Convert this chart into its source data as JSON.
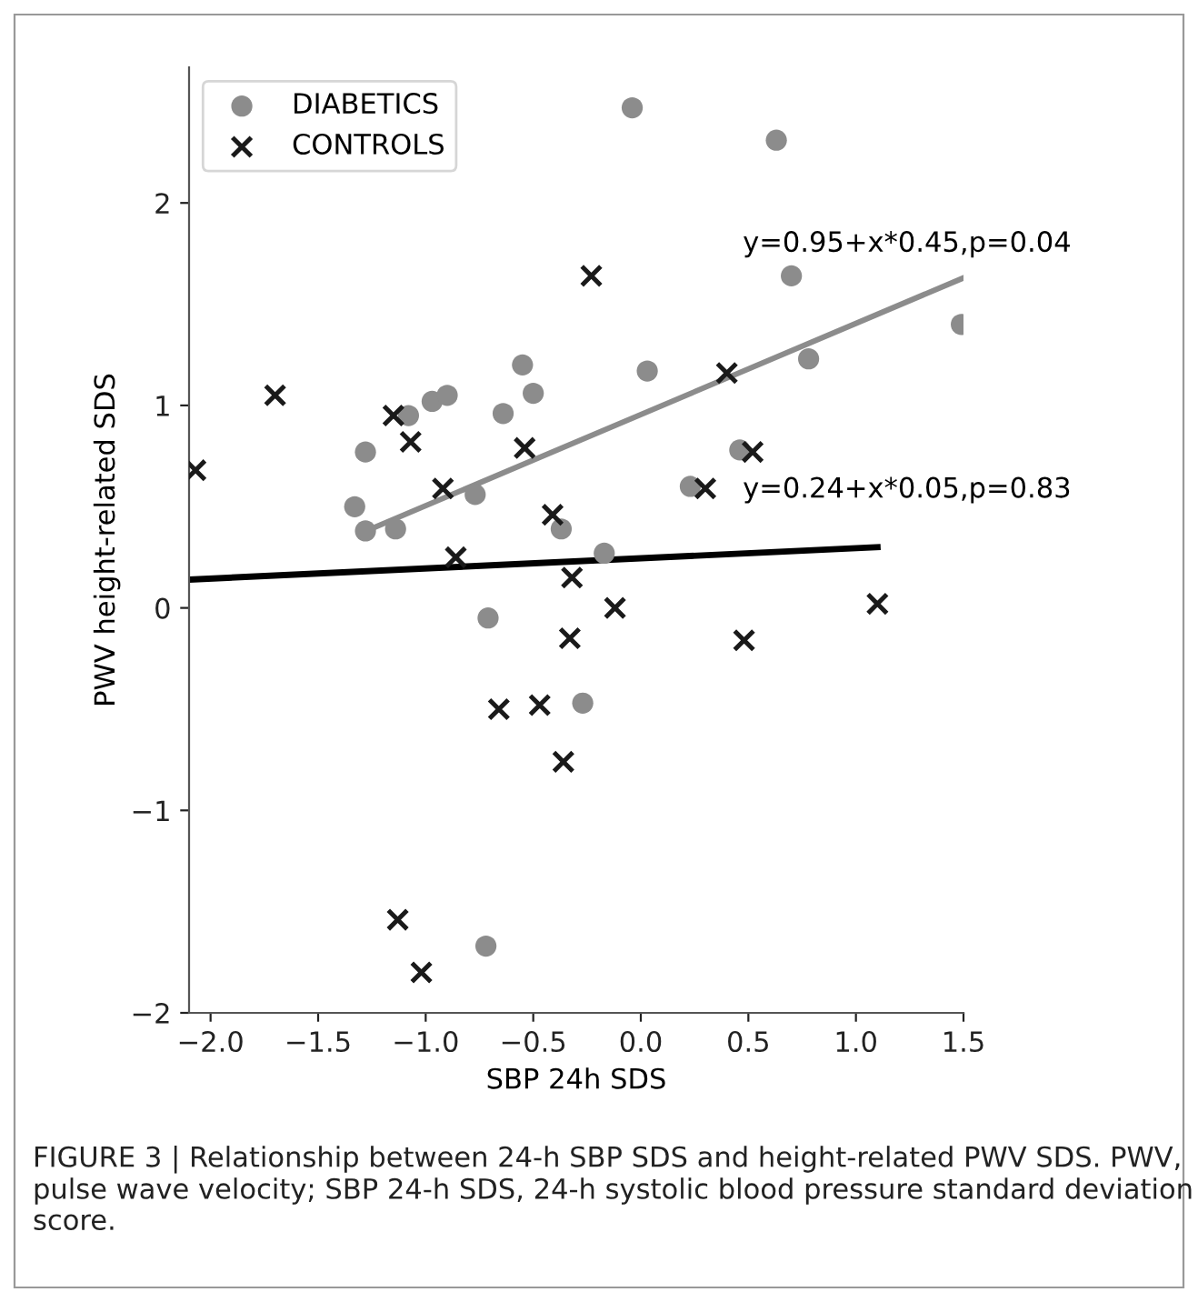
{
  "chart_data": {
    "type": "scatter",
    "xlabel": "SBP 24h SDS",
    "ylabel": "PWV height-related SDS",
    "xlim": [
      -2.1,
      1.5
    ],
    "ylim": [
      -2.0,
      2.67
    ],
    "xticks": [
      {
        "value": -2.0,
        "label": "−2.0"
      },
      {
        "value": -1.5,
        "label": "−1.5"
      },
      {
        "value": -1.0,
        "label": "−1.0"
      },
      {
        "value": -0.5,
        "label": "−0.5"
      },
      {
        "value": 0.0,
        "label": "0.0"
      },
      {
        "value": 0.5,
        "label": "0.5"
      },
      {
        "value": 1.0,
        "label": "1.0"
      },
      {
        "value": 1.5,
        "label": "1.5"
      }
    ],
    "yticks": [
      {
        "value": -2,
        "label": "−2"
      },
      {
        "value": -1,
        "label": "−1"
      },
      0,
      1,
      2
    ],
    "grid": false,
    "legend": "top left",
    "series": [
      {
        "name": "DIABETICS",
        "marker": "circle",
        "color": "#8c8c8c",
        "x": [
          -0.04,
          0.63,
          0.7,
          1.49,
          0.78,
          0.03,
          0.46,
          0.23,
          -0.55,
          -0.5,
          -0.97,
          -0.9,
          -1.08,
          -0.64,
          -1.28,
          -1.33,
          -0.77,
          -1.28,
          -1.14,
          -0.37,
          -0.17,
          -0.71,
          -0.27,
          -0.72
        ],
        "values": [
          2.47,
          2.31,
          1.64,
          1.4,
          1.23,
          1.17,
          0.78,
          0.6,
          1.2,
          1.06,
          1.02,
          1.05,
          0.95,
          0.96,
          0.77,
          0.5,
          0.56,
          0.38,
          0.39,
          0.39,
          0.27,
          -0.05,
          -0.47,
          -1.67
        ]
      },
      {
        "name": "CONTROLS",
        "marker": "cross",
        "color": "#1a1a1a",
        "x": [
          -1.7,
          -0.23,
          -2.07,
          -1.15,
          -1.07,
          -0.54,
          -0.92,
          -0.41,
          -0.86,
          -0.32,
          -0.12,
          0.4,
          0.52,
          0.3,
          1.1,
          -0.33,
          -0.47,
          -0.66,
          -0.36,
          -1.13,
          -1.02,
          0.48
        ],
        "values": [
          1.05,
          1.64,
          0.68,
          0.95,
          0.82,
          0.79,
          0.59,
          0.46,
          0.25,
          0.15,
          0.0,
          1.16,
          0.77,
          0.59,
          0.02,
          -0.15,
          -0.48,
          -0.5,
          -0.76,
          -1.54,
          -1.8,
          -0.16
        ]
      },
      {
        "type": "line",
        "color": "#8c8c8c",
        "x": [
          -1.3,
          1.5
        ],
        "values": [
          0.37,
          1.63
        ]
      },
      {
        "type": "line",
        "color": "#000000",
        "x": [
          -2.1,
          1.1
        ],
        "values": [
          0.14,
          0.3
        ]
      }
    ],
    "annotations": [
      "y=0.95+x*0.45,p=0.04",
      "y=0.24+x*0.05,p=0.83",
      "FIGURE 3 | Relationship between 24-h SBP SDS and height-related PWV SDS. PWV, pulse wave velocity; SBP 24-h SDS, 24-h systolic blood pressure standard deviation score."
    ]
  }
}
